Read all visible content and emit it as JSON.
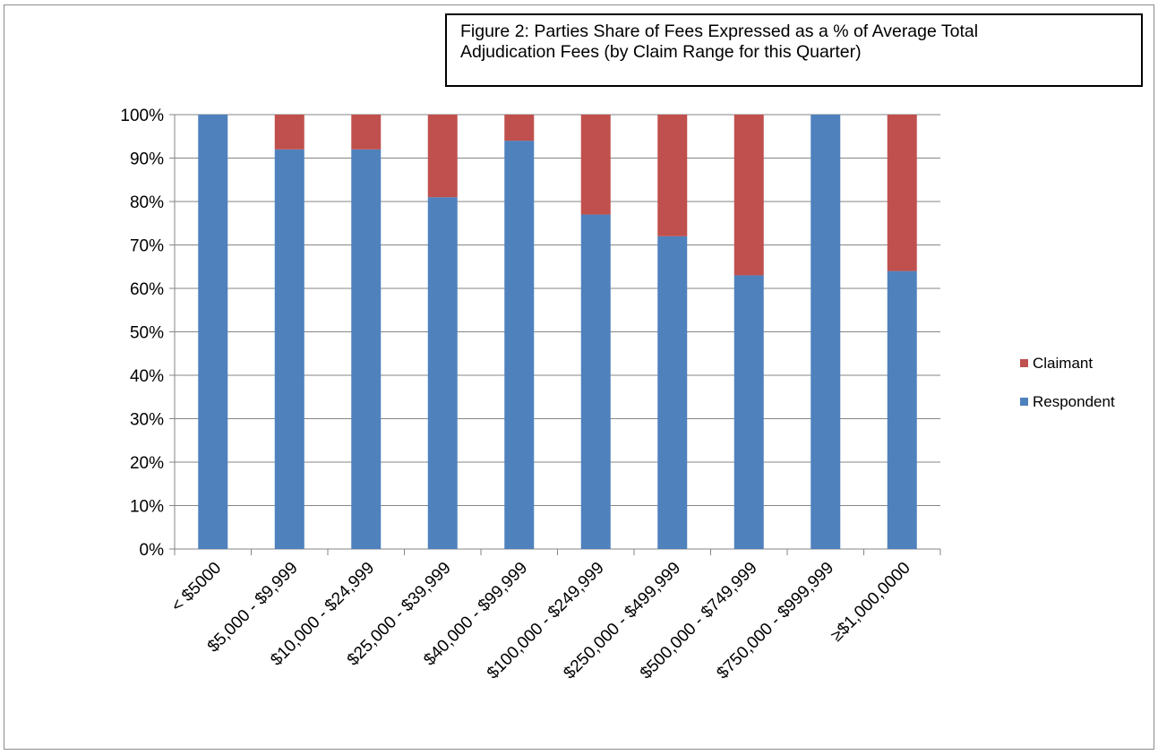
{
  "chart_data": {
    "type": "bar",
    "stacked": true,
    "title_line1": "Figure 2: Parties Share of Fees Expressed as a % of Average Total",
    "title_line2": "Adjudication Fees (by Claim Range for this Quarter)",
    "categories": [
      "< $5000",
      "$5,000 - $9,999",
      "$10,000 - $24,999",
      "$25,000 - $39,999",
      "$40,000 - $99,999",
      "$100,000 - $249,999",
      "$250,000 - $499,999",
      "$500,000 - $749,999",
      "$750,000 - $999,999",
      "≥$1,000,0000"
    ],
    "series": [
      {
        "name": "Respondent",
        "color": "#4f81bd",
        "values": [
          100,
          92,
          92,
          81,
          94,
          77,
          72,
          63,
          100,
          64
        ]
      },
      {
        "name": "Claimant",
        "color": "#c0504d",
        "values": [
          0,
          8,
          8,
          19,
          6,
          23,
          28,
          37,
          0,
          36
        ]
      }
    ],
    "ylim": [
      0,
      100
    ],
    "yticks": [
      "0%",
      "10%",
      "20%",
      "30%",
      "40%",
      "50%",
      "60%",
      "70%",
      "80%",
      "90%",
      "100%"
    ],
    "grid": true,
    "legend_position": "right",
    "legend": [
      {
        "label": "Claimant",
        "color": "#c0504d"
      },
      {
        "label": "Respondent",
        "color": "#4f81bd"
      }
    ]
  }
}
